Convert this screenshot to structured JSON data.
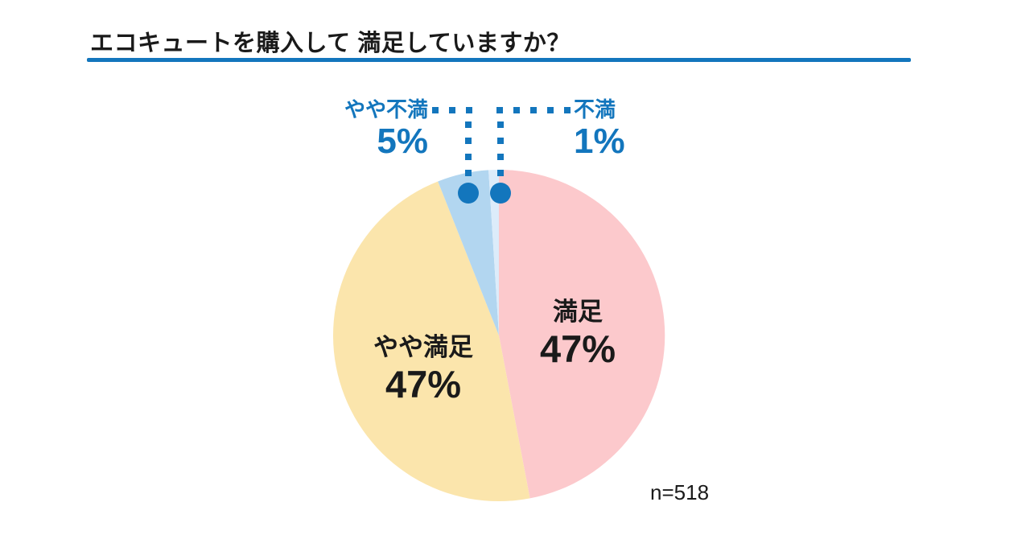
{
  "colors": {
    "accent_blue": "#1376BD",
    "text_black": "#1A1A1A",
    "background": "#FFFFFF"
  },
  "header": {
    "title": "エコキュートを購入して 満足していますか？"
  },
  "footer": {
    "sample_label": "n=518"
  },
  "chart_data": {
    "type": "pie",
    "title": "エコキュートを購入して 満足していますか？",
    "sample_size_label": "n=518",
    "start_angle_deg": 0,
    "direction": "clockwise",
    "total_pct": 100,
    "legend_position": "none",
    "segments": [
      {
        "label": "満足",
        "value": 47,
        "value_label": "47%",
        "color": "#FCC9CC",
        "label_placement": "inside"
      },
      {
        "label": "やや満足",
        "value": 47,
        "value_label": "47%",
        "color": "#FBE5AC",
        "label_placement": "inside"
      },
      {
        "label": "やや不満",
        "value": 5,
        "value_label": "5%",
        "color": "#B2D6F0",
        "label_placement": "callout-left"
      },
      {
        "label": "不満",
        "value": 1,
        "value_label": "1%",
        "color": "#DCECFA",
        "label_placement": "callout-right"
      }
    ]
  }
}
